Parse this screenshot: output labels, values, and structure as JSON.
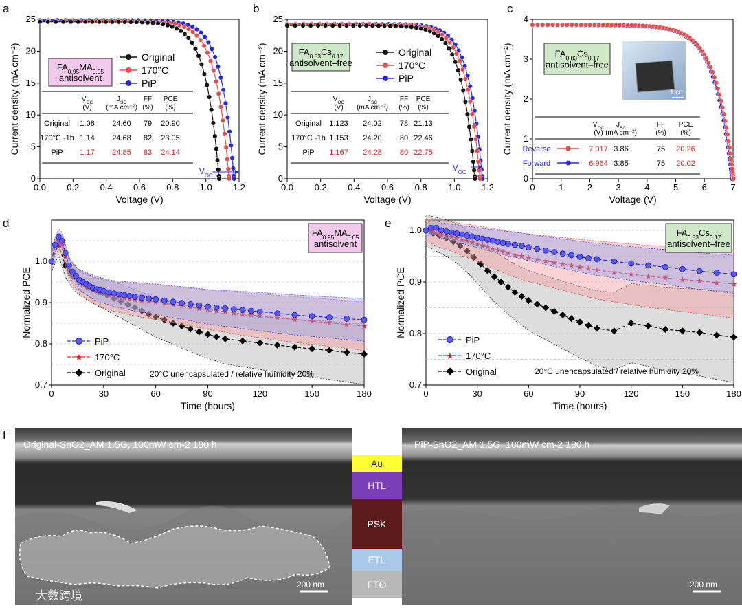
{
  "panels": {
    "a": "a",
    "b": "b",
    "c": "c",
    "d": "d",
    "e": "e",
    "f": "f"
  },
  "chart_data": [
    {
      "id": "a",
      "type": "line",
      "xlabel": "Voltage (V)",
      "ylabel": "Current density (mA cm⁻²)",
      "xlim": [
        0,
        1.2
      ],
      "ylim": [
        0,
        25
      ],
      "xticks": [
        "0.0",
        "0.2",
        "0.4",
        "0.6",
        "0.8",
        "1.0",
        "1.2"
      ],
      "yticks": [
        "0",
        "5",
        "10",
        "15",
        "20",
        "25"
      ],
      "label_lines": [
        "FA0.95MA0.05",
        "antisolvent"
      ],
      "voc_label": "VOC",
      "series": [
        {
          "name": "Original",
          "color": "#111111",
          "jsc": 24.6,
          "voc": 1.08,
          "knee": 0.74,
          "n": 40
        },
        {
          "name": "170°C",
          "color": "#e05050",
          "jsc": 24.68,
          "voc": 1.14,
          "knee": 0.8,
          "n": 40
        },
        {
          "name": "PiP",
          "color": "#2a2ad0",
          "jsc": 24.85,
          "voc": 1.17,
          "knee": 0.84,
          "n": 40
        }
      ],
      "table": {
        "headers": [
          [
            "V",
            "OC",
            "(V)"
          ],
          [
            "J",
            "SC",
            "(mA cm⁻²)"
          ],
          [
            "FF",
            "",
            "(%)"
          ],
          [
            "PCE",
            "",
            "(%)"
          ]
        ],
        "rows": [
          [
            "Original",
            "1.08",
            "24.60",
            "79",
            "20.90"
          ],
          [
            "170°C -1h",
            "1.14",
            "24.68",
            "82",
            "23.05"
          ],
          [
            "PiP",
            "1.17",
            "24.85",
            "83",
            "24.14"
          ]
        ]
      }
    },
    {
      "id": "b",
      "type": "line",
      "xlabel": "Voltage (V)",
      "ylabel": "Current density (mA cm⁻²)",
      "xlim": [
        0,
        1.2
      ],
      "ylim": [
        0,
        25
      ],
      "xticks": [
        "0.0",
        "0.2",
        "0.4",
        "0.6",
        "0.8",
        "1.0",
        "1.2"
      ],
      "yticks": [
        "0",
        "5",
        "10",
        "15",
        "20",
        "25"
      ],
      "label_lines": [
        "FA0.83Cs0.17",
        "antisolvent–free"
      ],
      "voc_label": "VOC",
      "series": [
        {
          "name": "Original",
          "color": "#111111",
          "jsc": 24.02,
          "voc": 1.123,
          "knee": 0.78,
          "n": 42
        },
        {
          "name": "170°C",
          "color": "#e05050",
          "jsc": 24.2,
          "voc": 1.153,
          "knee": 0.8,
          "n": 42
        },
        {
          "name": "PiP",
          "color": "#2a2ad0",
          "jsc": 24.28,
          "voc": 1.167,
          "knee": 0.83,
          "n": 42
        }
      ],
      "table": {
        "headers": [
          [
            "V",
            "OC",
            "(V)"
          ],
          [
            "J",
            "SC",
            "(mA cm⁻²)"
          ],
          [
            "FF",
            "",
            "(%)"
          ],
          [
            "PCE",
            "",
            "(%)"
          ]
        ],
        "rows": [
          [
            "Original",
            "1.123",
            "24.02",
            "78",
            "21.13"
          ],
          [
            "170°C -1h",
            "1.153",
            "24.20",
            "80",
            "22.46"
          ],
          [
            "PiP",
            "1.167",
            "24.28",
            "80",
            "22.75"
          ]
        ]
      }
    },
    {
      "id": "c",
      "type": "line",
      "xlabel": "Voltage (V)",
      "ylabel": "Current density (mA cm⁻²)",
      "xlim": [
        0,
        7
      ],
      "ylim": [
        0,
        4
      ],
      "xticks": [
        "0",
        "1",
        "2",
        "3",
        "4",
        "5",
        "6",
        "7"
      ],
      "yticks": [
        "0",
        "1",
        "2",
        "3",
        "4"
      ],
      "label_lines": [
        "FA0.83Cs0.17",
        "antisolvent–free"
      ],
      "photo_scale": "1 cm",
      "series": [
        {
          "name": "Reverse",
          "color": "#e05050",
          "jsc": 3.86,
          "voc": 7.017,
          "knee": 4.4,
          "n": 70
        },
        {
          "name": "Forward",
          "color": "#2a2ad0",
          "jsc": 3.85,
          "voc": 6.964,
          "knee": 4.4,
          "n": 70
        }
      ],
      "table": {
        "headers": [
          [
            "V",
            "OC",
            "(V)"
          ],
          [
            "J",
            "SC",
            "(mA cm⁻²)"
          ],
          [
            "FF",
            "",
            "(%)"
          ],
          [
            "PCE",
            "",
            "(%)"
          ]
        ],
        "rows": [
          [
            "Reverse",
            "7.017",
            "3.86",
            "75",
            "20.26"
          ],
          [
            "Forward",
            "6.964",
            "3.85",
            "75",
            "20.02"
          ]
        ]
      }
    },
    {
      "id": "d",
      "type": "line",
      "xlabel": "Time (hours)",
      "ylabel": "Normalized PCE",
      "xlim": [
        0,
        180
      ],
      "ylim": [
        0.7,
        1.1
      ],
      "xticks": [
        "0",
        "30",
        "60",
        "90",
        "120",
        "150",
        "180"
      ],
      "yticks": [
        "0.7",
        "0.8",
        "0.9",
        "1.0"
      ],
      "label_lines": [
        "FA0.95MA0.05",
        "antisolvent"
      ],
      "note": "20°C unencapsulated / relative humidity 20%",
      "series": [
        {
          "name": "PiP",
          "color": "#2a2ad0",
          "x": [
            0,
            2,
            4,
            6,
            8,
            10,
            12,
            14,
            16,
            18,
            20,
            22,
            24,
            26,
            28,
            30,
            33,
            36,
            39,
            42,
            45,
            48,
            52,
            56,
            60,
            65,
            70,
            75,
            80,
            85,
            90,
            95,
            100,
            105,
            110,
            115,
            120,
            130,
            140,
            150,
            160,
            170,
            180
          ],
          "y": [
            1.0,
            1.04,
            1.06,
            1.05,
            1.02,
            0.99,
            0.975,
            0.965,
            0.955,
            0.95,
            0.945,
            0.94,
            0.935,
            0.932,
            0.93,
            0.928,
            0.925,
            0.922,
            0.92,
            0.918,
            0.916,
            0.914,
            0.912,
            0.91,
            0.908,
            0.905,
            0.902,
            0.899,
            0.896,
            0.893,
            0.89,
            0.888,
            0.886,
            0.884,
            0.882,
            0.88,
            0.878,
            0.874,
            0.87,
            0.867,
            0.864,
            0.861,
            0.858
          ],
          "band": 0.035
        },
        {
          "name": "170°C",
          "color": "#e03030",
          "x": [
            0,
            2,
            4,
            6,
            8,
            10,
            12,
            14,
            16,
            18,
            20,
            22,
            24,
            26,
            28,
            30,
            33,
            36,
            39,
            42,
            45,
            48,
            52,
            56,
            60,
            65,
            70,
            75,
            80,
            85,
            90,
            95,
            100,
            105,
            110,
            115,
            120,
            130,
            140,
            150,
            160,
            170,
            180
          ],
          "y": [
            1.0,
            1.035,
            1.05,
            1.04,
            1.01,
            0.985,
            0.97,
            0.96,
            0.95,
            0.944,
            0.938,
            0.934,
            0.93,
            0.927,
            0.924,
            0.921,
            0.918,
            0.915,
            0.913,
            0.911,
            0.909,
            0.907,
            0.905,
            0.903,
            0.901,
            0.898,
            0.895,
            0.892,
            0.889,
            0.886,
            0.883,
            0.88,
            0.878,
            0.875,
            0.872,
            0.87,
            0.868,
            0.863,
            0.859,
            0.855,
            0.851,
            0.847,
            0.843
          ],
          "band": 0.04
        },
        {
          "name": "Original",
          "color": "#000000",
          "x": [
            0,
            4,
            8,
            12,
            16,
            20,
            24,
            28,
            32,
            36,
            40,
            44,
            48,
            52,
            56,
            60,
            65,
            70,
            75,
            80,
            85,
            90,
            95,
            100,
            110,
            120,
            130,
            140,
            150,
            160,
            170,
            180
          ],
          "y": [
            1.0,
            1.04,
            0.99,
            0.965,
            0.95,
            0.94,
            0.932,
            0.925,
            0.918,
            0.91,
            0.903,
            0.895,
            0.888,
            0.88,
            0.872,
            0.865,
            0.858,
            0.85,
            0.843,
            0.836,
            0.829,
            0.823,
            0.817,
            0.812,
            0.807,
            0.802,
            0.797,
            0.792,
            0.788,
            0.784,
            0.779,
            0.775
          ],
          "band": 0.05
        }
      ]
    },
    {
      "id": "e",
      "type": "line",
      "xlabel": "Time (hours)",
      "ylabel": "Normalized PCE",
      "xlim": [
        0,
        180
      ],
      "ylim": [
        0.7,
        1.02
      ],
      "xticks": [
        "0",
        "30",
        "60",
        "90",
        "120",
        "150",
        "180"
      ],
      "yticks": [
        "0.7",
        "0.8",
        "0.9",
        "1.0"
      ],
      "label_lines": [
        "FA0.83Cs0.17",
        "antisolvent–free"
      ],
      "note": "20°C unencapsulated / relative humidity 20%",
      "series": [
        {
          "name": "PiP",
          "color": "#2a2ad0",
          "x": [
            0,
            3,
            6,
            9,
            12,
            15,
            18,
            21,
            24,
            27,
            30,
            33,
            36,
            39,
            42,
            45,
            48,
            52,
            56,
            60,
            65,
            70,
            75,
            80,
            85,
            90,
            95,
            100,
            110,
            120,
            130,
            140,
            150,
            160,
            170,
            180
          ],
          "y": [
            1.0,
            1.005,
            1.005,
            1.0,
            0.998,
            0.996,
            0.994,
            0.992,
            0.99,
            0.988,
            0.986,
            0.984,
            0.982,
            0.98,
            0.978,
            0.976,
            0.974,
            0.972,
            0.97,
            0.967,
            0.964,
            0.961,
            0.958,
            0.955,
            0.952,
            0.949,
            0.946,
            0.944,
            0.94,
            0.936,
            0.932,
            0.929,
            0.925,
            0.921,
            0.918,
            0.915
          ],
          "band": 0.025
        },
        {
          "name": "170°C",
          "color": "#e03030",
          "x": [
            0,
            3,
            6,
            9,
            12,
            15,
            18,
            21,
            24,
            27,
            30,
            33,
            36,
            39,
            42,
            45,
            48,
            52,
            56,
            60,
            65,
            70,
            75,
            80,
            85,
            90,
            95,
            100,
            110,
            120,
            130,
            140,
            150,
            160,
            170,
            180
          ],
          "y": [
            1.0,
            0.998,
            0.995,
            0.992,
            0.99,
            0.988,
            0.985,
            0.982,
            0.98,
            0.977,
            0.974,
            0.971,
            0.968,
            0.965,
            0.962,
            0.959,
            0.956,
            0.953,
            0.95,
            0.947,
            0.944,
            0.941,
            0.938,
            0.935,
            0.932,
            0.929,
            0.926,
            0.923,
            0.919,
            0.915,
            0.911,
            0.908,
            0.905,
            0.902,
            0.899,
            0.896
          ],
          "band": 0.045
        },
        {
          "name": "Original",
          "color": "#000000",
          "x": [
            0,
            4,
            8,
            12,
            16,
            20,
            24,
            28,
            32,
            36,
            40,
            44,
            48,
            52,
            56,
            60,
            65,
            70,
            75,
            80,
            85,
            90,
            95,
            100,
            110,
            120,
            130,
            140,
            150,
            160,
            170,
            180
          ],
          "y": [
            1.0,
            0.995,
            0.99,
            0.985,
            0.978,
            0.97,
            0.96,
            0.948,
            0.935,
            0.922,
            0.91,
            0.9,
            0.89,
            0.88,
            0.872,
            0.864,
            0.857,
            0.85,
            0.843,
            0.836,
            0.829,
            0.822,
            0.816,
            0.81,
            0.805,
            0.82,
            0.815,
            0.808,
            0.805,
            0.802,
            0.797,
            0.793
          ],
          "band": 0.06
        }
      ]
    }
  ],
  "sem": {
    "left_title": "Original-SnO2_AM 1.5G, 100mW cm-2 180 h",
    "right_title": "PiP-SnO2_AM 1.5G, 100mW cm-2 180 h",
    "scale": "200 nm",
    "layers": [
      {
        "name": "Au",
        "color": "#ffff33",
        "text": "#333333"
      },
      {
        "name": "HTL",
        "color": "#7a3fb8",
        "text": "#ffffff"
      },
      {
        "name": "PSK",
        "color": "#5c1a1a",
        "text": "#ffffff"
      },
      {
        "name": "ETL",
        "color": "#a8c8e8",
        "text": "#ffffff"
      },
      {
        "name": "FTO",
        "color": "#b8b8b8",
        "text": "#ffffff"
      }
    ]
  },
  "watermark": "大数跨境"
}
